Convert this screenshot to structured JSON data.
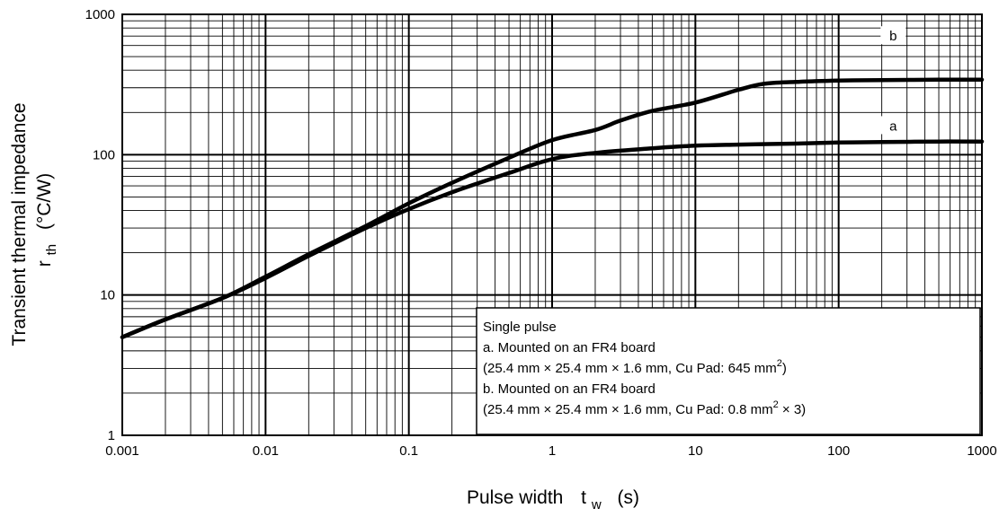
{
  "chart_data": {
    "type": "line",
    "xlabel": {
      "main": "Pulse width",
      "sym": "t",
      "sub": "w",
      "unit": "(s)"
    },
    "ylabel": {
      "line1": "Transient thermal impedance",
      "sym": "r",
      "sub": "th",
      "unit": "(°C/W)"
    },
    "x_scale": "log",
    "y_scale": "log",
    "xlim": [
      0.001,
      1000
    ],
    "ylim": [
      1,
      1000
    ],
    "x_ticks": [
      {
        "v": 0.001,
        "label": "0.001"
      },
      {
        "v": 0.01,
        "label": "0.01"
      },
      {
        "v": 0.1,
        "label": "0.1"
      },
      {
        "v": 1,
        "label": "1"
      },
      {
        "v": 10,
        "label": "10"
      },
      {
        "v": 100,
        "label": "100"
      },
      {
        "v": 1000,
        "label": "1000"
      }
    ],
    "y_ticks": [
      {
        "v": 1,
        "label": "1"
      },
      {
        "v": 10,
        "label": "10"
      },
      {
        "v": 100,
        "label": "100"
      },
      {
        "v": 1000,
        "label": "1000"
      }
    ],
    "grid": true,
    "series": [
      {
        "name": "a",
        "label_at": {
          "x": 20,
          "y": 160
        },
        "points": [
          [
            0.001,
            5
          ],
          [
            0.002,
            6.7
          ],
          [
            0.005,
            9.5
          ],
          [
            0.01,
            13.2
          ],
          [
            0.02,
            19
          ],
          [
            0.05,
            30
          ],
          [
            0.1,
            41
          ],
          [
            0.2,
            54
          ],
          [
            0.5,
            74
          ],
          [
            1,
            93
          ],
          [
            2,
            103
          ],
          [
            5,
            111
          ],
          [
            10,
            116
          ],
          [
            20,
            118
          ],
          [
            50,
            120
          ],
          [
            100,
            122
          ],
          [
            200,
            123
          ],
          [
            500,
            124
          ],
          [
            1000,
            124
          ]
        ]
      },
      {
        "name": "b",
        "label_at": {
          "x": 20,
          "y": 700
        },
        "points": [
          [
            0.001,
            5
          ],
          [
            0.002,
            6.7
          ],
          [
            0.005,
            9.5
          ],
          [
            0.01,
            13.5
          ],
          [
            0.02,
            19.5
          ],
          [
            0.05,
            31
          ],
          [
            0.1,
            45
          ],
          [
            0.2,
            63
          ],
          [
            0.5,
            95
          ],
          [
            1,
            127
          ],
          [
            2,
            150
          ],
          [
            3,
            175
          ],
          [
            5,
            205
          ],
          [
            10,
            235
          ],
          [
            20,
            290
          ],
          [
            30,
            320
          ],
          [
            50,
            330
          ],
          [
            100,
            337
          ],
          [
            200,
            340
          ],
          [
            500,
            342
          ],
          [
            1000,
            342
          ]
        ]
      }
    ],
    "annotation": {
      "lines": [
        {
          "text": "Single pulse"
        },
        {
          "text": "a. Mounted on an FR4 board"
        },
        {
          "text": "(25.4 mm  ×  25.4 mm  ×  1.6 mm, Cu Pad: 645 mm",
          "sup": "2",
          "after": ")"
        },
        {
          "text": "b. Mounted on an FR4 board"
        },
        {
          "text": "(25.4 mm  ×  25.4 mm  ×  1.6 mm, Cu Pad: 0.8 mm",
          "sup": "2",
          "after": "  ×  3)"
        }
      ]
    },
    "colors": {
      "line": "#000000",
      "grid": "#000000",
      "background": "#ffffff"
    }
  }
}
